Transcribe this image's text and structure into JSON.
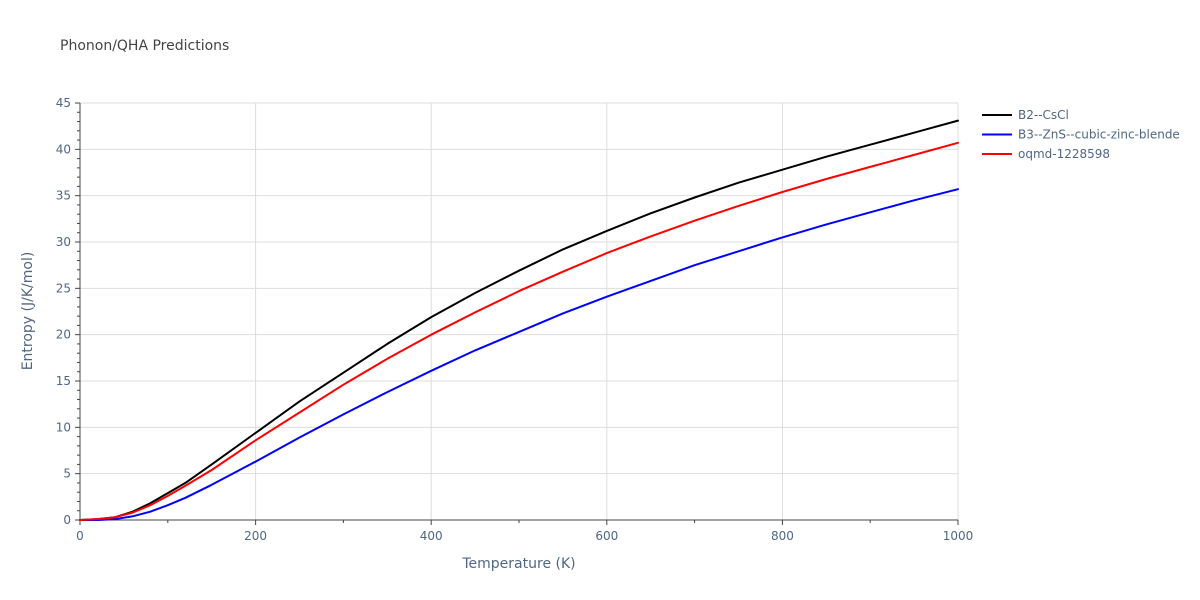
{
  "chart_data": {
    "type": "line",
    "title": "Phonon/QHA Predictions",
    "xlabel": "Temperature (K)",
    "ylabel": "Entropy (J/K/mol)",
    "xlim": [
      0,
      1000
    ],
    "ylim": [
      0,
      45
    ],
    "x_ticks": [
      0,
      200,
      400,
      600,
      800,
      1000
    ],
    "y_ticks": [
      0,
      5,
      10,
      15,
      20,
      25,
      30,
      35,
      40,
      45
    ],
    "grid": true,
    "legend_position": "top-right",
    "series": [
      {
        "name": "B2--CsCl",
        "color": "#000000",
        "x": [
          0,
          20,
          40,
          60,
          80,
          100,
          120,
          150,
          200,
          250,
          300,
          350,
          400,
          450,
          500,
          550,
          600,
          650,
          700,
          750,
          800,
          850,
          900,
          950,
          1000
        ],
        "y": [
          0,
          0.1,
          0.3,
          0.9,
          1.8,
          2.9,
          4.0,
          6.0,
          9.4,
          12.8,
          15.9,
          19.0,
          21.9,
          24.5,
          26.9,
          29.2,
          31.2,
          33.1,
          34.8,
          36.4,
          37.8,
          39.2,
          40.5,
          41.8,
          43.1
        ]
      },
      {
        "name": "B3--ZnS--cubic-zinc-blende",
        "color": "#0000ff",
        "x": [
          0,
          20,
          40,
          60,
          80,
          100,
          120,
          150,
          200,
          250,
          300,
          350,
          400,
          450,
          500,
          550,
          600,
          650,
          700,
          750,
          800,
          850,
          900,
          950,
          1000
        ],
        "y": [
          0,
          0,
          0.1,
          0.4,
          0.9,
          1.6,
          2.4,
          3.8,
          6.3,
          8.9,
          11.4,
          13.8,
          16.1,
          18.3,
          20.3,
          22.3,
          24.1,
          25.8,
          27.5,
          29.0,
          30.5,
          31.9,
          33.2,
          34.5,
          35.7
        ]
      },
      {
        "name": "oqmd-1228598",
        "color": "#ff0000",
        "x": [
          0,
          20,
          40,
          60,
          80,
          100,
          120,
          150,
          200,
          250,
          300,
          350,
          400,
          450,
          500,
          550,
          600,
          650,
          700,
          750,
          800,
          850,
          900,
          950,
          1000
        ],
        "y": [
          0,
          0.1,
          0.3,
          0.8,
          1.6,
          2.6,
          3.7,
          5.4,
          8.6,
          11.6,
          14.6,
          17.4,
          20.0,
          22.4,
          24.7,
          26.8,
          28.8,
          30.6,
          32.3,
          33.9,
          35.4,
          36.8,
          38.1,
          39.4,
          40.7
        ]
      }
    ]
  }
}
